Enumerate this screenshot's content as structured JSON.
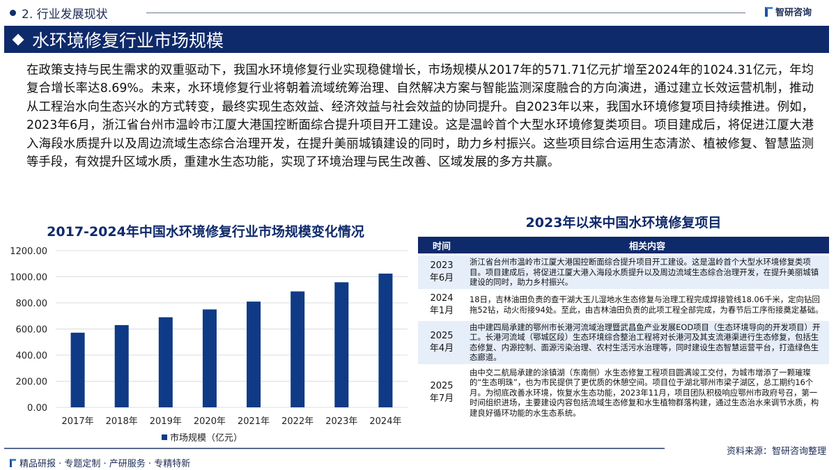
{
  "header": {
    "section": "2. 行业发展现状",
    "logo_text": "智研咨询",
    "banner_title": "水环境修复行业市场规模"
  },
  "paragraph": "在政策支持与民生需求的双重驱动下，我国水环境修复行业实现稳健增长，市场规模从2017年的571.71亿元扩增至2024年的1024.31亿元，年均复合增长率达8.69%。未来，水环境修复行业将朝着流域统筹治理、自然解决方案与智能监测深度融合的方向演进，通过建立长效运营机制，推动从工程治水向生态兴水的方式转变，最终实现生态效益、经济效益与社会效益的协同提升。自2023年以来，我国水环境修复项目持续推进。例如，2023年6月，浙江省台州市温岭市江厦大港国控断面综合提升项目开工建设。这是温岭首个大型水环境修复类项目。项目建成后，将促进江厦大港入海段水质提升以及周边流域生态综合治理开发，在提升美丽城镇建设的同时，助力乡村振兴。这些项目综合运用生态清淤、植被修复、智慧监测等手段，有效提升区域水质，重建水生态功能，实现了环境治理与民生改善、区域发展的多方共赢。",
  "chart_data": {
    "type": "bar",
    "title": "2017-2024年中国水环境修复行业市场规模变化情况",
    "categories": [
      "2017年",
      "2018年",
      "2019年",
      "2020年",
      "2021年",
      "2022年",
      "2023年",
      "2024年"
    ],
    "series": [
      {
        "name": "市场规模（亿元）",
        "values": [
          571.71,
          630,
          690,
          750,
          810,
          888,
          958,
          1024.31
        ]
      }
    ],
    "ylim": [
      0,
      1200
    ],
    "yticks": [
      "0.00",
      "200.00",
      "400.00",
      "600.00",
      "800.00",
      "1000.00",
      "1200.00"
    ],
    "grid": true,
    "legend": "bottom",
    "color": "#0f3a85"
  },
  "table": {
    "title": "2023年以来中国水环境修复项目",
    "headers": [
      "时间",
      "相关内容"
    ],
    "rows": [
      {
        "time": "2023\n年6月",
        "content": "浙江省台州市温岭市江厦大港国控断面综合提升项目开工建设。这是温岭首个大型水环境修复类项目。项目建成后，将促进江厦大港入海段水质提升以及周边流域生态综合治理开发，在提升美丽城镇建设的同时，助力乡村振兴。"
      },
      {
        "time": "2024\n年1月",
        "content": "18日，吉林油田负责的查干湖大玉儿湿地水生态修复与治理工程完成焊接管线18.06千米，定向钻回拖52钻，动火衔接94处。至此，由吉林油田负责的此项工程全部完成，为春节后工序衔接奠定基础。"
      },
      {
        "time": "2025\n年4月",
        "content": "由中建四局承建的鄂州市长港河流域治理暨武昌鱼产业发展EOD项目（生态环境导向的开发项目）开工。长港河流域（鄂城区段）生态环境综合整治工程将对长港河及其支流港渠进行生态修复，包括生态修复、内源控制、面源污染治理、农村生活污水治理等，同时建设生态智慧运营平台，打造绿色生态廊道。"
      },
      {
        "time": "2025\n年7月",
        "content": "由中交二航局承建的涂镇湖（东南侧）水生态修复工程项目圆满竣工交付，为城市增添了一颗璀璨的“生态明珠”，也为市民提供了更优质的休憩空间。项目位于湖北鄂州市梁子湖区，总工期约16个月。为彻底改善水环境，恢复水生态功能，2023年11月，项目团队积极响应鄂州市政府号召，第一时间组织进场，主要建设内容包括流域生态修复和水生植物群落构建，通过生态治水来调节水质，构建良好循环功能的水生态系统。"
      }
    ]
  },
  "source": "资料来源：智研咨询整理",
  "footer": "精品研报 · 专题定制 · 产研服务 · 专精特新"
}
